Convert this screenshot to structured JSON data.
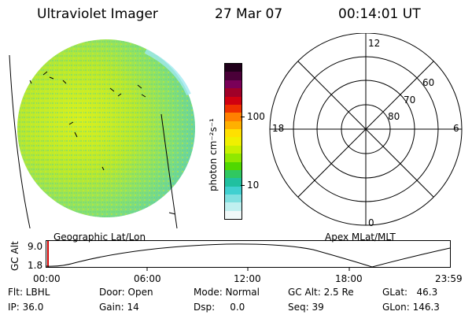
{
  "header": {
    "title": "Ultraviolet Imager",
    "date": "27 Mar 07",
    "time": "00:14:01 UT"
  },
  "colorbar": {
    "unit_label": "photon cm⁻²s⁻¹",
    "tick_100": "100",
    "tick_10": "10",
    "colors_top_to_bottom": [
      "#20001a",
      "#4a0038",
      "#7a0058",
      "#a00028",
      "#d00010",
      "#ee3000",
      "#ff8000",
      "#ffb000",
      "#ffe000",
      "#f0f000",
      "#c8f000",
      "#90e800",
      "#50d800",
      "#30c860",
      "#20c0a0",
      "#40d0d0",
      "#80e0e0",
      "#c0f0f0",
      "#f0f8f8"
    ]
  },
  "polar": {
    "mlt_labels": {
      "top": "12",
      "left": "18",
      "right": "6",
      "bottom": "0"
    },
    "lat_labels": [
      "60",
      "70",
      "80"
    ]
  },
  "map_labels": {
    "left": "Geographic Lat/Lon",
    "right": "Apex MLat/MLT"
  },
  "altitude_plot": {
    "ylabel": "GC Alt",
    "ytick_top": "9.0",
    "ytick_bottom": "1.8",
    "xticks": [
      "00:00",
      "06:00",
      "12:00",
      "18:00",
      "23:59"
    ]
  },
  "info": {
    "flt": "Flt: LBHL",
    "ip": "IP: 36.0",
    "door": "Door: Open",
    "gain": "Gain: 14",
    "mode": "Mode: Normal",
    "dsp": "Dsp:     0.0",
    "gc_alt": "GC Alt: 2.5 Re",
    "seq": "Seq: 39",
    "glat": "GLat:   46.3",
    "glon": "GLon: 146.3"
  }
}
